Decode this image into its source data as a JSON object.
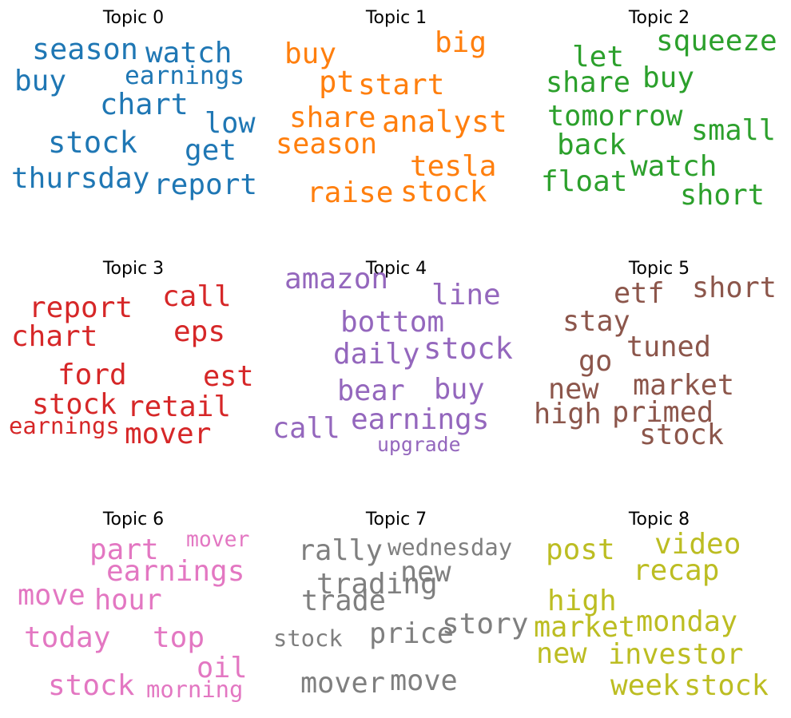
{
  "chart_data": [
    {
      "type": "wordcloud",
      "title": "Topic 0",
      "color": "#1f77b4",
      "words": [
        {
          "text": "season",
          "weight": 0.92
        },
        {
          "text": "watch",
          "weight": 0.9
        },
        {
          "text": "earnings",
          "weight": 0.78
        },
        {
          "text": "buy",
          "weight": 0.9
        },
        {
          "text": "chart",
          "weight": 0.92
        },
        {
          "text": "low",
          "weight": 0.88
        },
        {
          "text": "stock",
          "weight": 0.93
        },
        {
          "text": "get",
          "weight": 0.9
        },
        {
          "text": "thursday",
          "weight": 0.9
        },
        {
          "text": "report",
          "weight": 0.9
        }
      ]
    },
    {
      "type": "wordcloud",
      "title": "Topic 1",
      "color": "#ff7f0e",
      "words": [
        {
          "text": "buy",
          "weight": 0.9
        },
        {
          "text": "big",
          "weight": 0.9
        },
        {
          "text": "pt",
          "weight": 0.93
        },
        {
          "text": "start",
          "weight": 0.9
        },
        {
          "text": "share",
          "weight": 0.9
        },
        {
          "text": "analyst",
          "weight": 0.93
        },
        {
          "text": "season",
          "weight": 0.88
        },
        {
          "text": "tesla",
          "weight": 0.9
        },
        {
          "text": "raise",
          "weight": 0.9
        },
        {
          "text": "stock",
          "weight": 0.9
        }
      ]
    },
    {
      "type": "wordcloud",
      "title": "Topic 2",
      "color": "#2ca02c",
      "words": [
        {
          "text": "squeeze",
          "weight": 0.9
        },
        {
          "text": "let",
          "weight": 0.9
        },
        {
          "text": "buy",
          "weight": 0.9
        },
        {
          "text": "share",
          "weight": 0.88
        },
        {
          "text": "tomorrow",
          "weight": 0.88
        },
        {
          "text": "small",
          "weight": 0.88
        },
        {
          "text": "back",
          "weight": 0.9
        },
        {
          "text": "watch",
          "weight": 0.9
        },
        {
          "text": "float",
          "weight": 0.9
        },
        {
          "text": "short",
          "weight": 0.88
        }
      ]
    },
    {
      "type": "wordcloud",
      "title": "Topic 3",
      "color": "#d62728",
      "words": [
        {
          "text": "call",
          "weight": 0.9
        },
        {
          "text": "report",
          "weight": 0.9
        },
        {
          "text": "eps",
          "weight": 0.9
        },
        {
          "text": "chart",
          "weight": 0.9
        },
        {
          "text": "ford",
          "weight": 0.9
        },
        {
          "text": "est",
          "weight": 0.88
        },
        {
          "text": "stock",
          "weight": 0.88
        },
        {
          "text": "retail",
          "weight": 0.9
        },
        {
          "text": "earnings",
          "weight": 0.72
        },
        {
          "text": "mover",
          "weight": 0.9
        }
      ]
    },
    {
      "type": "wordcloud",
      "title": "Topic 4",
      "color": "#9467bd",
      "words": [
        {
          "text": "amazon",
          "weight": 0.9
        },
        {
          "text": "line",
          "weight": 0.9
        },
        {
          "text": "bottom",
          "weight": 0.9
        },
        {
          "text": "daily",
          "weight": 0.9
        },
        {
          "text": "stock",
          "weight": 0.93
        },
        {
          "text": "bear",
          "weight": 0.88
        },
        {
          "text": "buy",
          "weight": 0.88
        },
        {
          "text": "earnings",
          "weight": 0.9
        },
        {
          "text": "call",
          "weight": 0.88
        },
        {
          "text": "upgrade",
          "weight": 0.62
        }
      ]
    },
    {
      "type": "wordcloud",
      "title": "Topic 5",
      "color": "#8c564b",
      "words": [
        {
          "text": "short",
          "weight": 0.88
        },
        {
          "text": "etf",
          "weight": 0.88
        },
        {
          "text": "stay",
          "weight": 0.88
        },
        {
          "text": "tuned",
          "weight": 0.88
        },
        {
          "text": "go",
          "weight": 0.88
        },
        {
          "text": "new",
          "weight": 0.88
        },
        {
          "text": "market",
          "weight": 0.88
        },
        {
          "text": "high",
          "weight": 0.88
        },
        {
          "text": "primed",
          "weight": 0.88
        },
        {
          "text": "stock",
          "weight": 0.88
        }
      ]
    },
    {
      "type": "wordcloud",
      "title": "Topic 6",
      "color": "#e377c2",
      "words": [
        {
          "text": "mover",
          "weight": 0.66
        },
        {
          "text": "part",
          "weight": 0.9
        },
        {
          "text": "earnings",
          "weight": 0.9
        },
        {
          "text": "move",
          "weight": 0.88
        },
        {
          "text": "hour",
          "weight": 0.88
        },
        {
          "text": "today",
          "weight": 0.9
        },
        {
          "text": "top",
          "weight": 0.9
        },
        {
          "text": "oil",
          "weight": 0.88
        },
        {
          "text": "stock",
          "weight": 0.9
        },
        {
          "text": "morning",
          "weight": 0.72
        }
      ]
    },
    {
      "type": "wordcloud",
      "title": "Topic 7",
      "color": "#7f7f7f",
      "words": [
        {
          "text": "rally",
          "weight": 0.88
        },
        {
          "text": "wednesday",
          "weight": 0.72
        },
        {
          "text": "new",
          "weight": 0.88
        },
        {
          "text": "trade",
          "weight": 0.88
        },
        {
          "text": "trading",
          "weight": 0.9
        },
        {
          "text": "stock",
          "weight": 0.72
        },
        {
          "text": "price",
          "weight": 0.88
        },
        {
          "text": "story",
          "weight": 0.9
        },
        {
          "text": "mover",
          "weight": 0.88
        },
        {
          "text": "move",
          "weight": 0.88
        }
      ]
    },
    {
      "type": "wordcloud",
      "title": "Topic 8",
      "color": "#bcbd22",
      "words": [
        {
          "text": "post",
          "weight": 0.9
        },
        {
          "text": "video",
          "weight": 0.9
        },
        {
          "text": "recap",
          "weight": 0.9
        },
        {
          "text": "high",
          "weight": 0.9
        },
        {
          "text": "market",
          "weight": 0.88
        },
        {
          "text": "monday",
          "weight": 0.88
        },
        {
          "text": "new",
          "weight": 0.88
        },
        {
          "text": "investor",
          "weight": 0.88
        },
        {
          "text": "week",
          "weight": 0.9
        },
        {
          "text": "stock",
          "weight": 0.88
        }
      ]
    }
  ]
}
